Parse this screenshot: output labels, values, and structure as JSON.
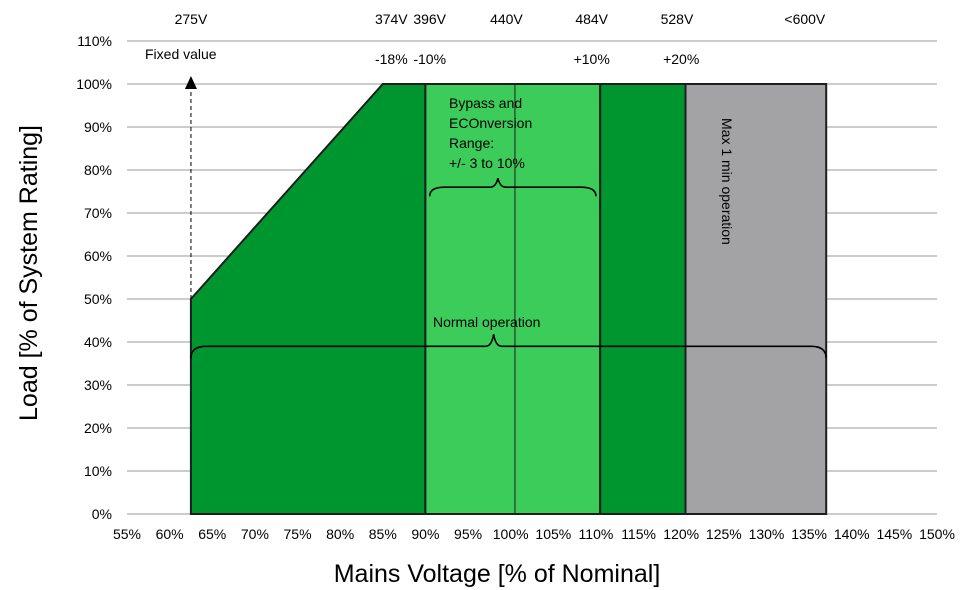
{
  "chart_data": {
    "type": "area",
    "xlabel": "Mains Voltage [% of Nominal]",
    "ylabel": "Load [% of System Rating]",
    "xlim": [
      55,
      150
    ],
    "ylim": [
      0,
      110
    ],
    "x_ticks": [
      "55%",
      "60%",
      "65%",
      "70%",
      "75%",
      "80%",
      "85%",
      "90%",
      "95%",
      "100%",
      "105%",
      "110%",
      "115%",
      "120%",
      "125%",
      "130%",
      "135%",
      "140%",
      "145%",
      "150%"
    ],
    "y_ticks": [
      "0%",
      "10%",
      "20%",
      "30%",
      "40%",
      "50%",
      "60%",
      "70%",
      "80%",
      "90%",
      "100%",
      "110%"
    ],
    "grid": "horizontal",
    "colors": {
      "dark_green": "#00962f",
      "light_green": "#3ccc5a",
      "gray": "#a3a3a6",
      "outline": "#1e1e1e"
    },
    "regions": [
      {
        "x": [
          62.5,
          62.5,
          85,
          90,
          90
        ],
        "y": [
          0,
          50,
          100,
          100,
          0
        ],
        "color": "dark_green"
      },
      {
        "x": [
          90,
          90,
          110.5,
          110.5
        ],
        "y": [
          0,
          100,
          100,
          0
        ],
        "color": "light_green"
      },
      {
        "x": [
          110.5,
          110.5,
          120.5,
          120.5
        ],
        "y": [
          0,
          100,
          100,
          0
        ],
        "color": "dark_green"
      },
      {
        "x": [
          120.5,
          120.5,
          137,
          137
        ],
        "y": [
          0,
          100,
          100,
          0
        ],
        "color": "gray"
      }
    ],
    "center_line_x": 100.5,
    "voltage_labels": [
      {
        "x": 62.5,
        "label": "275V"
      },
      {
        "x": 86,
        "label": "374V"
      },
      {
        "x": 90.5,
        "label": "396V"
      },
      {
        "x": 99.5,
        "label": "440V"
      },
      {
        "x": 109.5,
        "label": "484V"
      },
      {
        "x": 119.5,
        "label": "528V"
      },
      {
        "x": 134.5,
        "label": "<600V"
      }
    ],
    "percent_labels": [
      {
        "x": 86,
        "label": "-18%"
      },
      {
        "x": 90.5,
        "label": "-10%"
      },
      {
        "x": 109.5,
        "label": "+10%"
      },
      {
        "x": 120,
        "label": "+20%"
      }
    ],
    "annotations": {
      "fixed_value": "Fixed value",
      "bypass_lines": [
        "Bypass and",
        "ECOnversion",
        "Range:",
        "+/- 3 to 10%"
      ],
      "normal_operation": "Normal operation",
      "max_operation": "Max 1 min operation"
    },
    "bypass_brace": {
      "x_start": 90.5,
      "x_end": 110,
      "x_peak": 98.5,
      "y": 76
    },
    "normal_brace": {
      "x_start": 62.5,
      "x_end": 137,
      "x_peak": 98,
      "y": 39
    }
  }
}
